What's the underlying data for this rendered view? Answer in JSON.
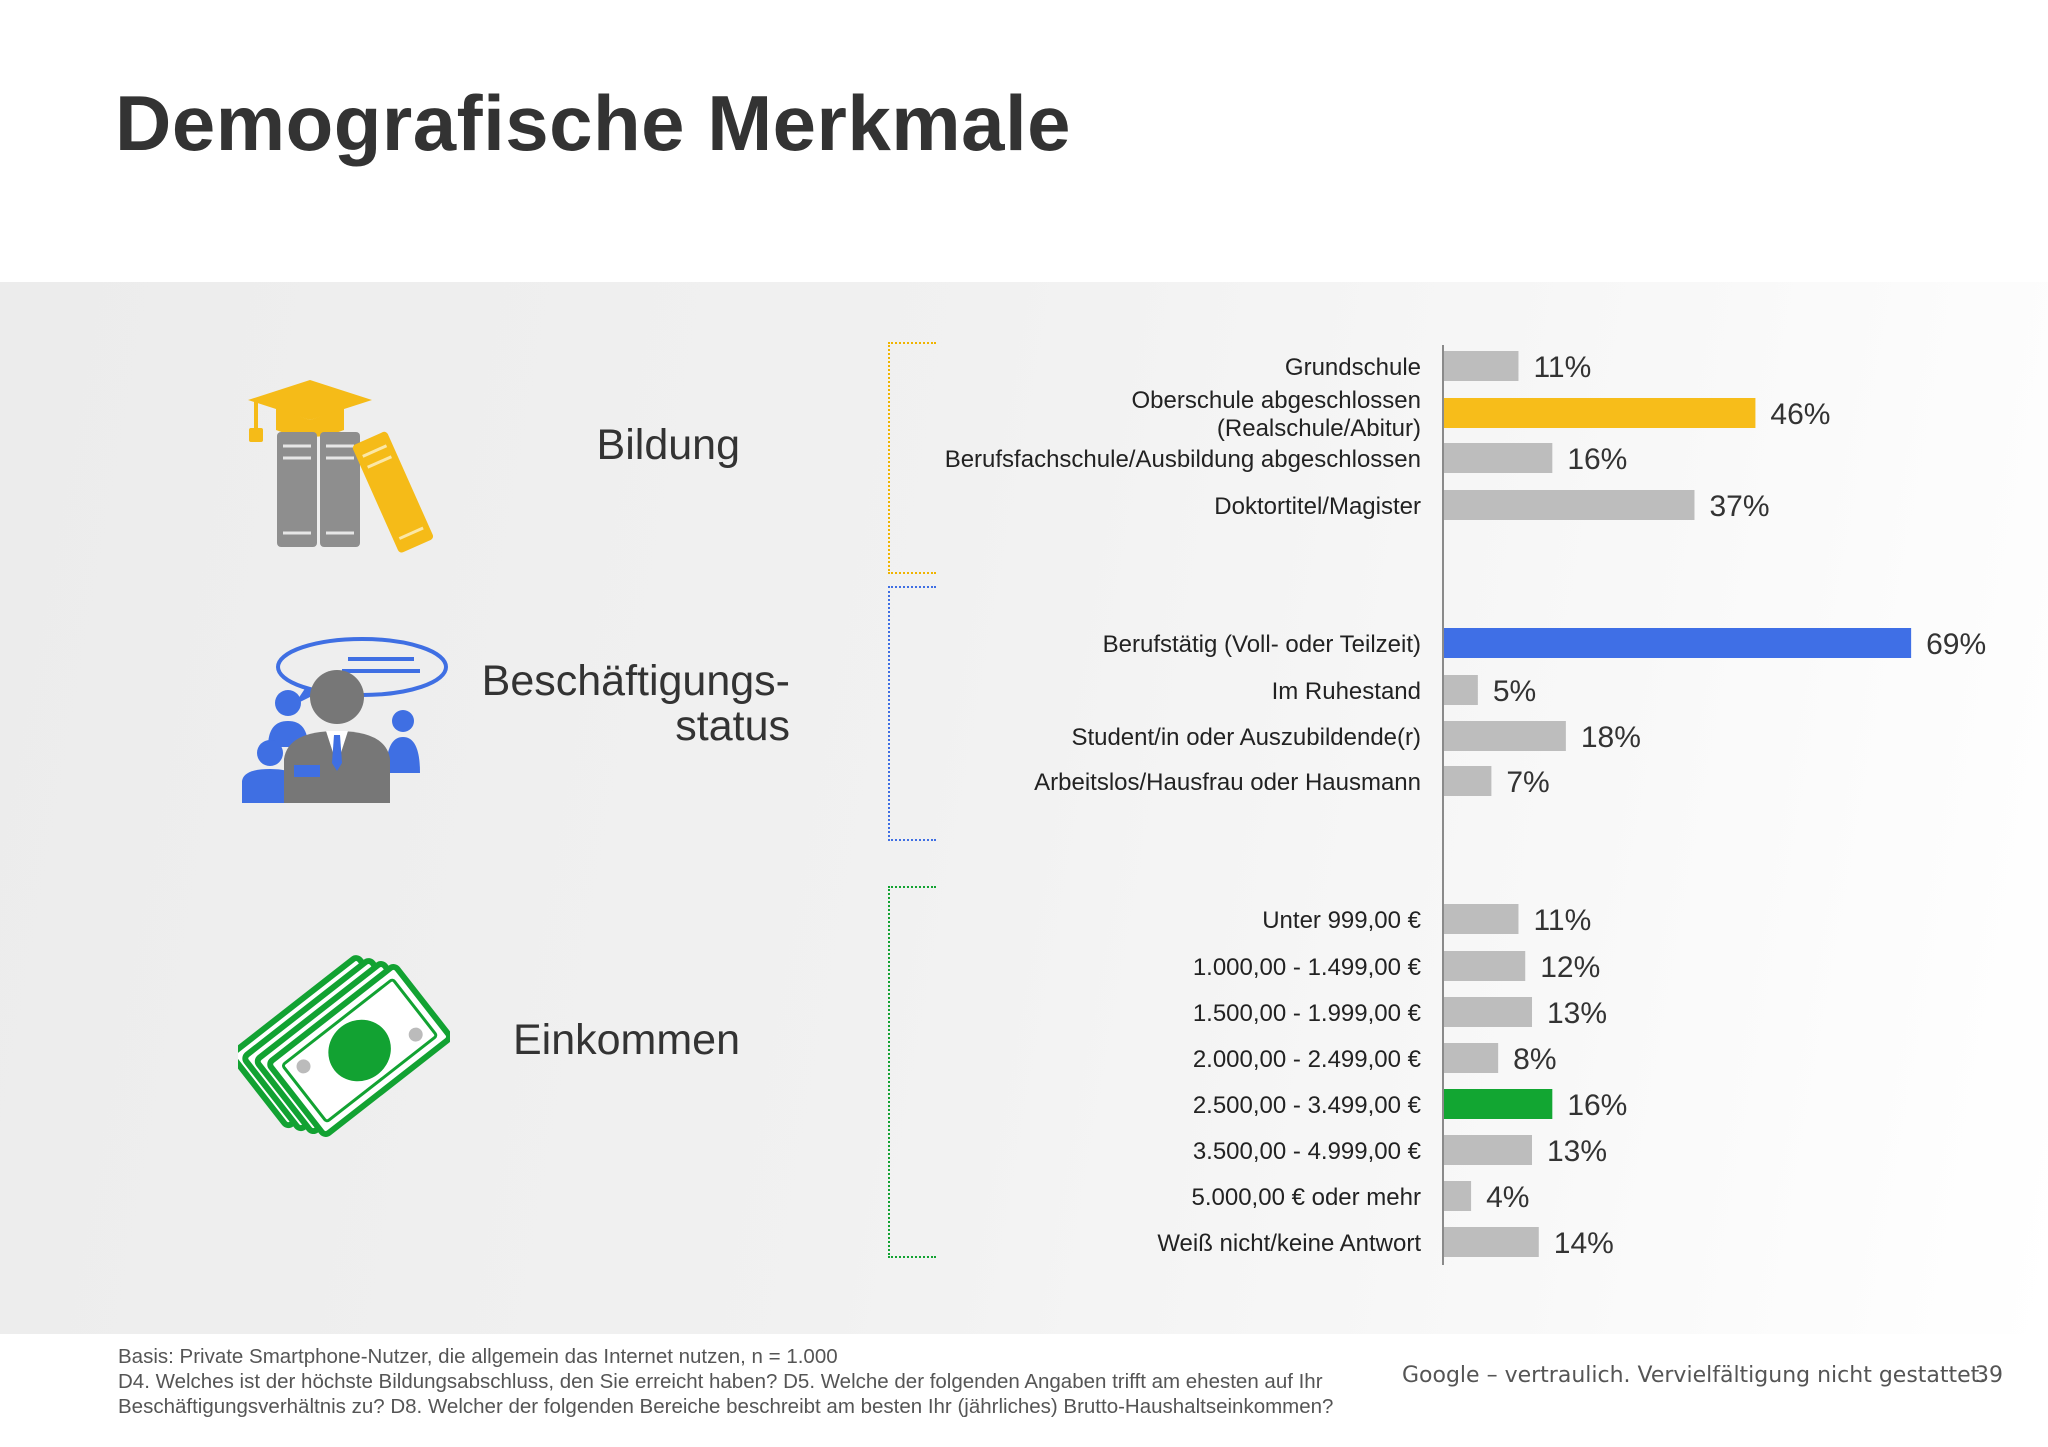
{
  "slide": {
    "title": "Demografische Merkmale",
    "page_number": "39",
    "confidential_note": "Google – vertraulich. Vervielfältigung nicht gestattet.",
    "footnote": "Basis: Private Smartphone-Nutzer, die allgemein das Internet nutzen, n = 1.000\nD4. Welches ist der höchste Bildungsabschluss, den Sie erreicht haben? D5. Welche der folgenden Angaben trifft am ehesten auf Ihr Beschäftigungsverhältnis zu? D8. Welcher der folgenden Bereiche beschreibt am besten Ihr (jährliches) Brutto-Haushaltseinkommen?"
  },
  "groups": [
    {
      "label": "Bildung",
      "icon": "graduation-books-icon",
      "color": "#f5bb18"
    },
    {
      "label": "Beschäftigungs-\nstatus",
      "icon": "business-people-icon",
      "color": "#3f6fe3"
    },
    {
      "label": "Einkommen",
      "icon": "money-bills-icon",
      "color": "#12a232"
    }
  ],
  "chart_data": {
    "type": "bar",
    "orientation": "horizontal",
    "unit": "%",
    "default_color": "#bdbdbd",
    "groups": [
      {
        "name": "Bildung",
        "categories": [
          "Grundschule",
          "Oberschule abgeschlossen\n(Realschule/Abitur)",
          "Berufsfachschule/Ausbildung abgeschlossen",
          "Doktortitel/Magister"
        ],
        "values": [
          11,
          46,
          16,
          37
        ],
        "labels": [
          "11%",
          "46%",
          "16%",
          "37%"
        ],
        "highlight_index": 1,
        "highlight_color": "#f7bd1a"
      },
      {
        "name": "Beschäftigungsstatus",
        "categories": [
          "Berufstätig (Voll- oder Teilzeit)",
          "Im Ruhestand",
          "Student/in oder Auszubildende(r)",
          "Arbeitslos/Hausfrau oder Hausmann"
        ],
        "values": [
          69,
          5,
          18,
          7
        ],
        "labels": [
          "69%",
          "5%",
          "18%",
          "7%"
        ],
        "highlight_index": 0,
        "highlight_color": "#3f6fe6"
      },
      {
        "name": "Einkommen",
        "categories": [
          "Unter 999,00 €",
          "1.000,00 - 1.499,00 €",
          "1.500,00 - 1.999,00 €",
          "2.000,00 - 2.499,00 €",
          "2.500,00 - 3.499,00 €",
          "3.500,00 - 4.999,00 €",
          "5.000,00 € oder mehr",
          "Weiß nicht/keine Antwort"
        ],
        "values": [
          11,
          12,
          13,
          8,
          16,
          13,
          4,
          14
        ],
        "labels": [
          "11%",
          "12%",
          "13%",
          "8%",
          "16%",
          "13%",
          "4%",
          "14%"
        ],
        "highlight_index": 4,
        "highlight_color": "#12a632"
      }
    ]
  }
}
